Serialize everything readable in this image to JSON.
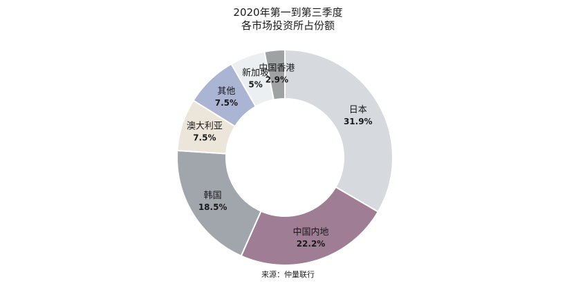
{
  "chart_data": {
    "type": "pie",
    "title": "2020年第一到第三季度",
    "subtitle": "各市场投资所占份额",
    "source": "来源：仲量联行",
    "categories": [
      "日本",
      "中国内地",
      "韩国",
      "澳大利亚",
      "其他",
      "新加坡",
      "中国香港"
    ],
    "values": [
      31.9,
      22.2,
      18.5,
      7.5,
      7.5,
      5,
      2.9
    ],
    "value_labels": [
      "31.9%",
      "22.2%",
      "18.5%",
      "7.5%",
      "7.5%",
      "5%",
      "2.9%"
    ],
    "colors": [
      "#d6dade",
      "#9f7d95",
      "#a1a6ad",
      "#ece5da",
      "#aab5d4",
      "#eceff1",
      "#9ea2a2"
    ],
    "donut": true,
    "legend": "none"
  }
}
